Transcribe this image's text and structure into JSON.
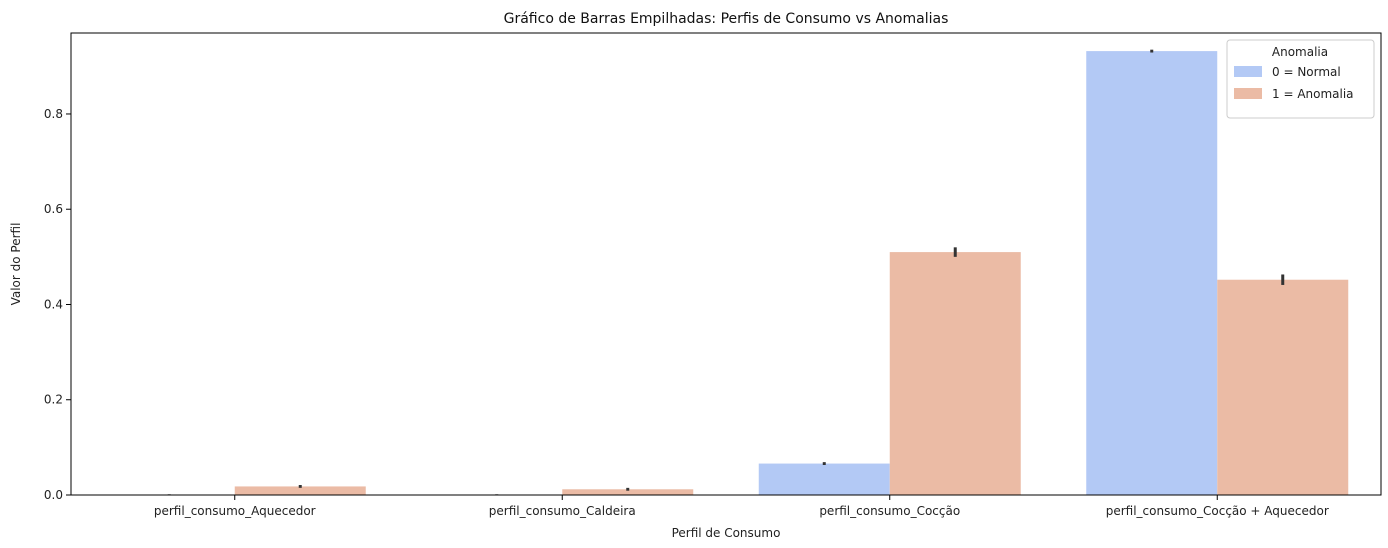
{
  "chart_data": {
    "type": "bar",
    "title": "Gráfico de Barras Empilhadas: Perfis de Consumo vs Anomalias",
    "xlabel": "Perfil de Consumo",
    "ylabel": "Valor do Perfil",
    "categories": [
      "perfil_consumo_Aquecedor",
      "perfil_consumo_Caldeira",
      "perfil_consumo_Cocção",
      "perfil_consumo_Cocção + Aquecedor"
    ],
    "ylim": [
      0,
      0.97
    ],
    "yticks": [
      0.0,
      0.2,
      0.4,
      0.6,
      0.8
    ],
    "ytick_labels": [
      "0.0",
      "0.2",
      "0.4",
      "0.6",
      "0.8"
    ],
    "grid": false,
    "series": [
      {
        "name": "0 = Normal",
        "color": "#b3c9f5",
        "values": [
          0.001,
          0.001,
          0.066,
          0.932
        ],
        "err": [
          0.0005,
          0.0005,
          0.003,
          0.003
        ]
      },
      {
        "name": "1 = Anomalia",
        "color": "#ebbba5",
        "values": [
          0.018,
          0.012,
          0.51,
          0.452
        ],
        "err": [
          0.003,
          0.003,
          0.01,
          0.011
        ]
      }
    ],
    "legend": {
      "title": "Anomalia",
      "position": "top-right"
    }
  }
}
